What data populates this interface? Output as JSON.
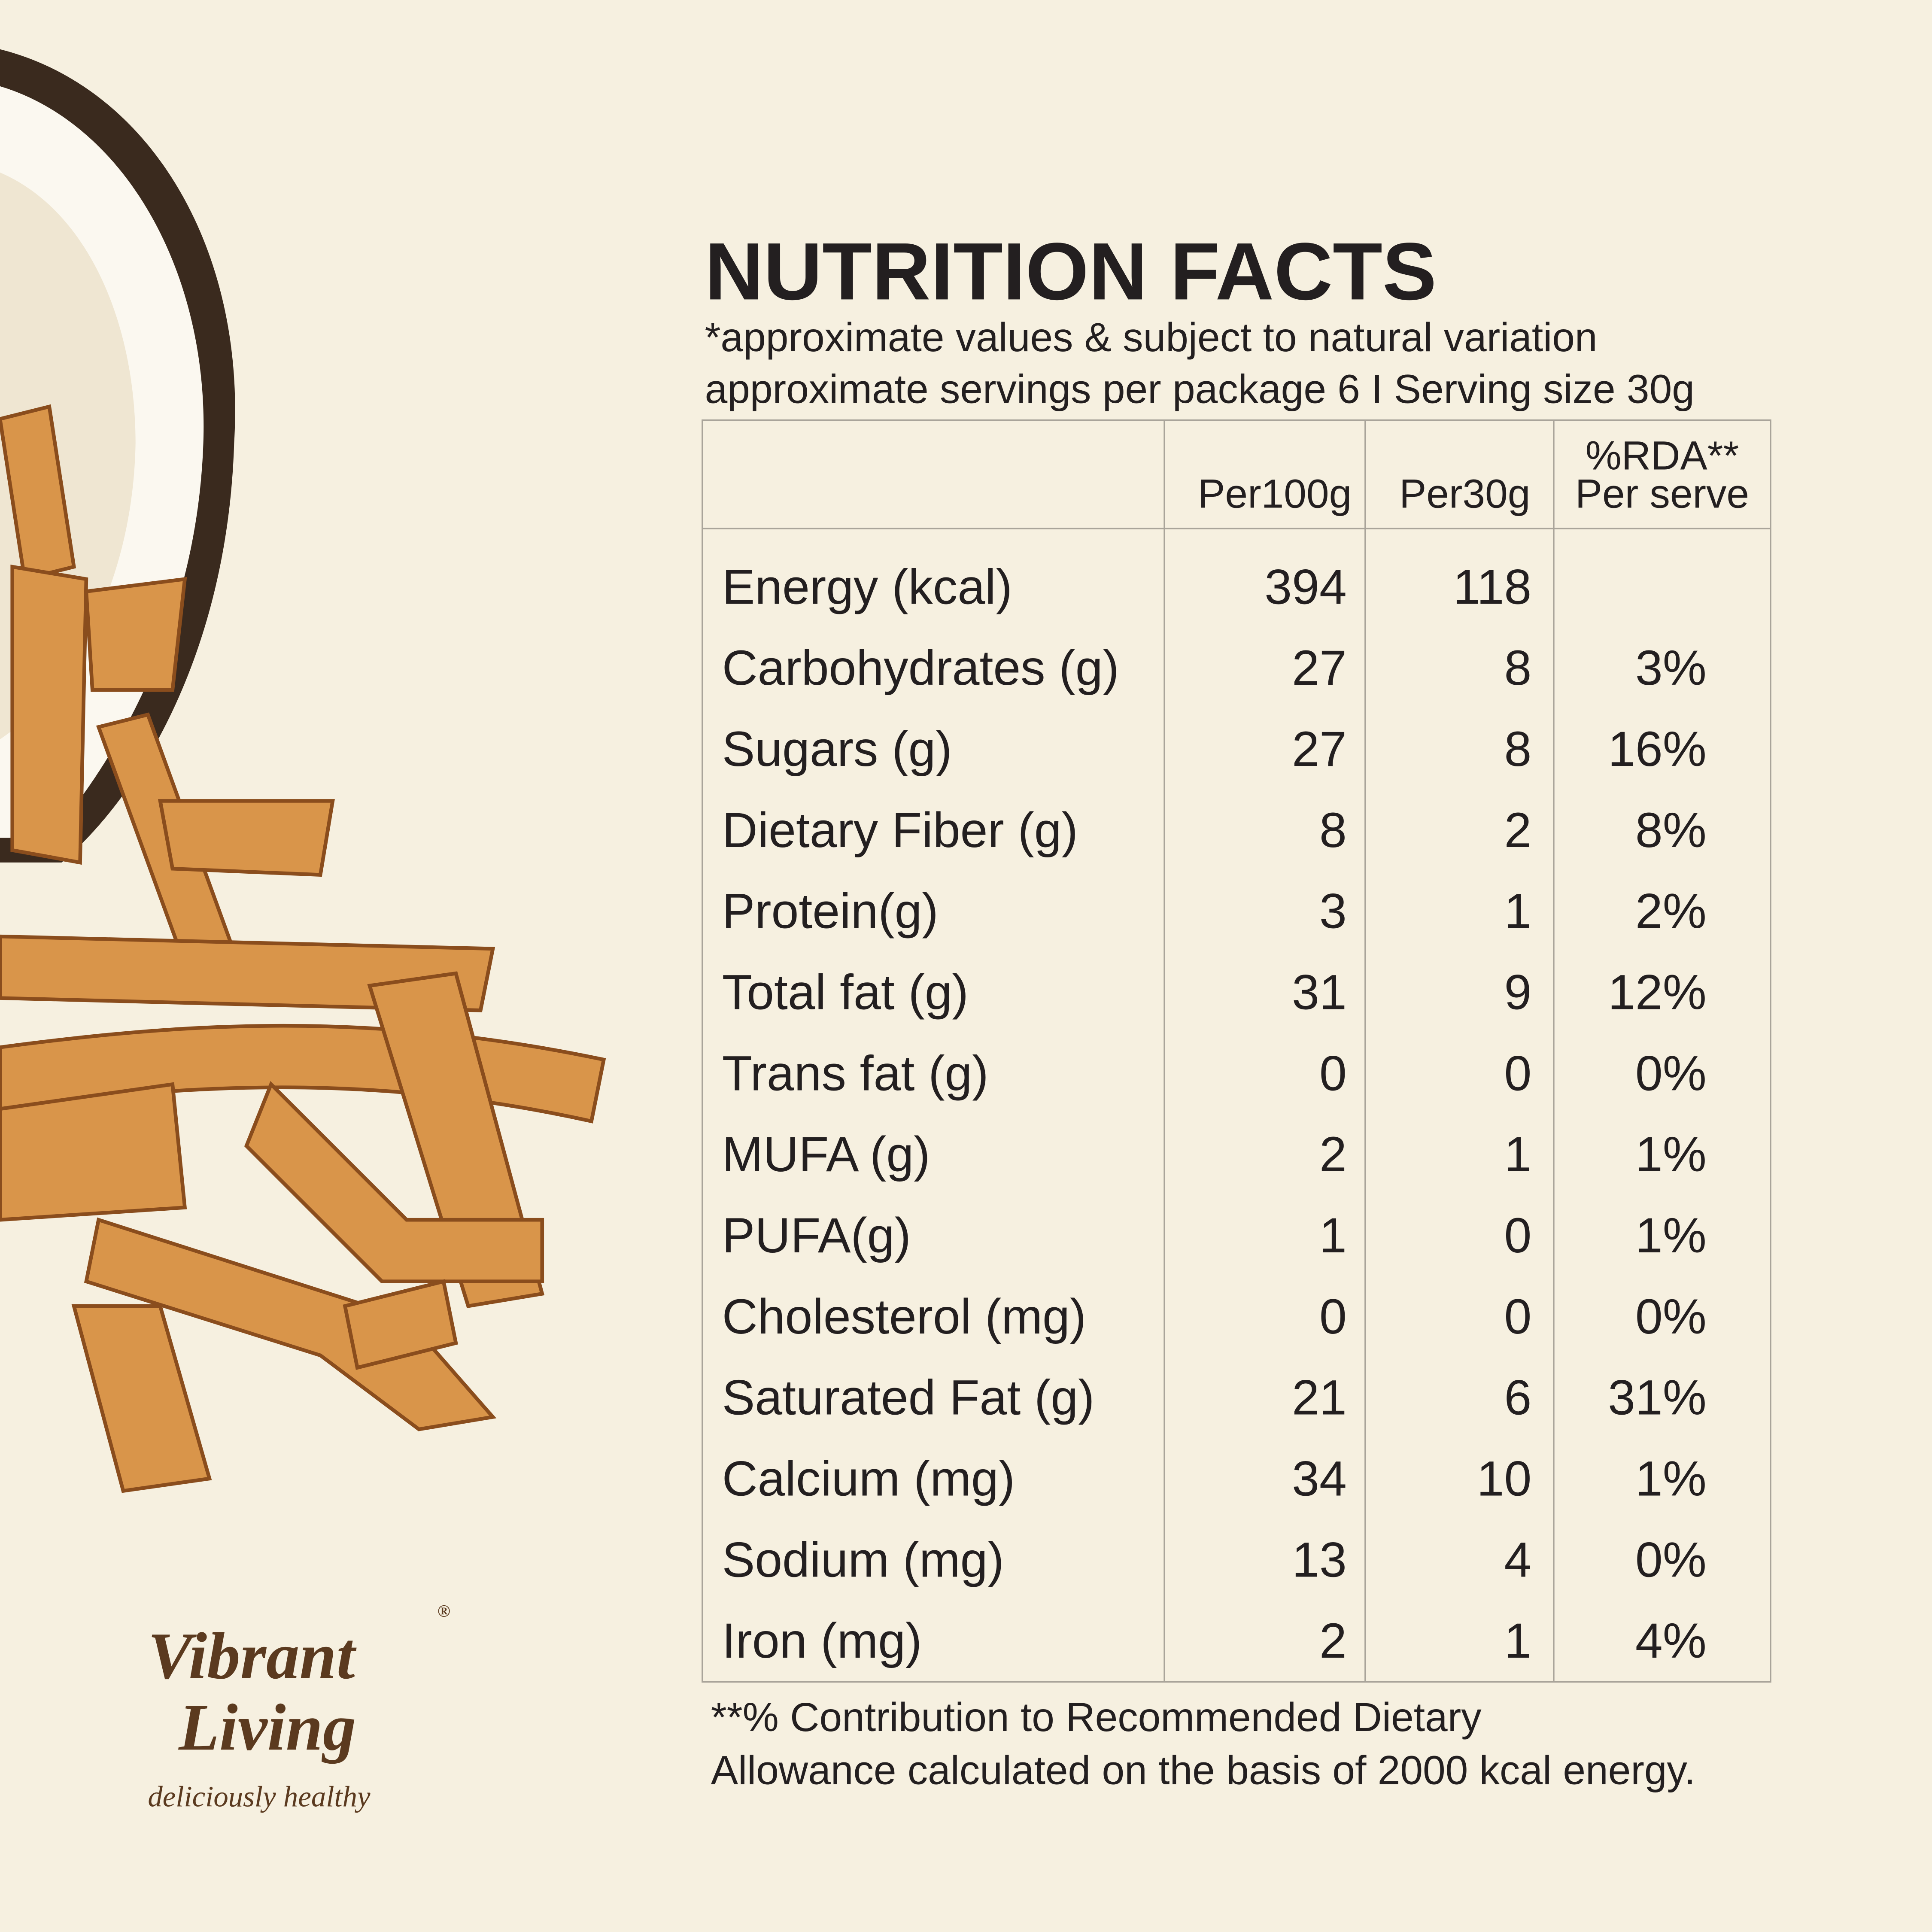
{
  "header": {
    "title": "NUTRITION FACTS",
    "note": "*approximate values & subject to natural variation",
    "serving": "approximate servings per package 6 I Serving size 30g"
  },
  "table": {
    "columns": [
      [
        "Per100g"
      ],
      [
        "Per30g"
      ],
      [
        "%RDA**",
        "Per serve"
      ]
    ],
    "rows": [
      [
        "Energy (kcal)",
        "394",
        "118"
      ],
      [
        "Carbohydrates (g)",
        "27",
        "8",
        "3%"
      ],
      [
        "Sugars (g)",
        "27",
        "8",
        "16%"
      ],
      [
        "Dietary Fiber (g)",
        "8",
        "2",
        "8%"
      ],
      [
        "Protein(g)",
        "3",
        "1",
        "2%"
      ],
      [
        "Total fat (g)",
        "31",
        "9",
        "12%"
      ],
      [
        "Trans fat (g)",
        "0",
        "0",
        "0%"
      ],
      [
        "MUFA (g)",
        "2",
        "1",
        "1%"
      ],
      [
        "PUFA(g)",
        "1",
        "0",
        "1%"
      ],
      [
        "Cholesterol (mg)",
        "0",
        "0",
        "0%"
      ],
      [
        "Saturated Fat (g)",
        "21",
        "6",
        "31%"
      ],
      [
        "Calcium (mg)",
        "34",
        "10",
        "1%"
      ],
      [
        "Sodium (mg)",
        "13",
        "4",
        "0%"
      ],
      [
        "Iron (mg)",
        "2",
        "1",
        "4%"
      ]
    ]
  },
  "footnote": [
    "**% Contribution to Recommended Dietary",
    "Allowance calculated on the basis of 2000 kcal energy."
  ],
  "logo": {
    "line1": "Vibrant",
    "line2": "Living",
    "mark": "®",
    "tagline": "deliciously healthy"
  }
}
